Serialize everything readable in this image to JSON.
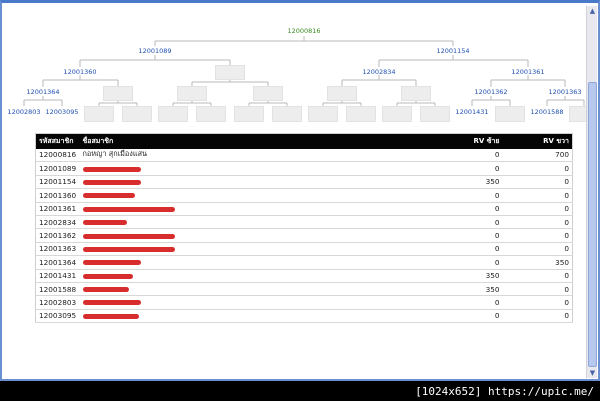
{
  "tree": {
    "root": "12000816",
    "level1": [
      "12001089",
      "12001154"
    ],
    "level2": [
      "12001360",
      "12002834",
      "12001361"
    ],
    "level3": [
      "12001364",
      "12001362",
      "12001363"
    ],
    "level4": [
      "12002803",
      "12003095",
      "12001431",
      "12001588"
    ]
  },
  "table": {
    "headers": {
      "code": "รหัสสมาชิก",
      "name": "ชื่อสมาชิก",
      "rv_left": "RV ซ้าย",
      "rv_right": "RV ขวา"
    },
    "rows": [
      {
        "code": "12000816",
        "name": "กอหญา สุกเมืองแสน",
        "rv_left": "0",
        "rv_right": "700",
        "redact": 0
      },
      {
        "code": "12001089",
        "name": "",
        "rv_left": "0",
        "rv_right": "0",
        "redact": 58
      },
      {
        "code": "12001154",
        "name": "",
        "rv_left": "350",
        "rv_right": "0",
        "redact": 58
      },
      {
        "code": "12001360",
        "name": "",
        "rv_left": "0",
        "rv_right": "0",
        "redact": 52
      },
      {
        "code": "12001361",
        "name": "",
        "rv_left": "0",
        "rv_right": "0",
        "redact": 92
      },
      {
        "code": "12002834",
        "name": "",
        "rv_left": "0",
        "rv_right": "0",
        "redact": 44
      },
      {
        "code": "12001362",
        "name": "",
        "rv_left": "0",
        "rv_right": "0",
        "redact": 92
      },
      {
        "code": "12001363",
        "name": "",
        "rv_left": "0",
        "rv_right": "0",
        "redact": 92
      },
      {
        "code": "12001364",
        "name": "",
        "rv_left": "0",
        "rv_right": "350",
        "redact": 58
      },
      {
        "code": "12001431",
        "name": "",
        "rv_left": "350",
        "rv_right": "0",
        "redact": 50
      },
      {
        "code": "12001588",
        "name": "",
        "rv_left": "350",
        "rv_right": "0",
        "redact": 46
      },
      {
        "code": "12002803",
        "name": "",
        "rv_left": "0",
        "rv_right": "0",
        "redact": 58
      },
      {
        "code": "12003095",
        "name": "",
        "rv_left": "0",
        "rv_right": "0",
        "redact": 56
      }
    ]
  },
  "caption": "[1024x652] https://upic.me/",
  "colors": {
    "link": "#1f50b0",
    "root": "#3a8a22",
    "header_bg": "#050505",
    "redact": "#d41b1b"
  }
}
